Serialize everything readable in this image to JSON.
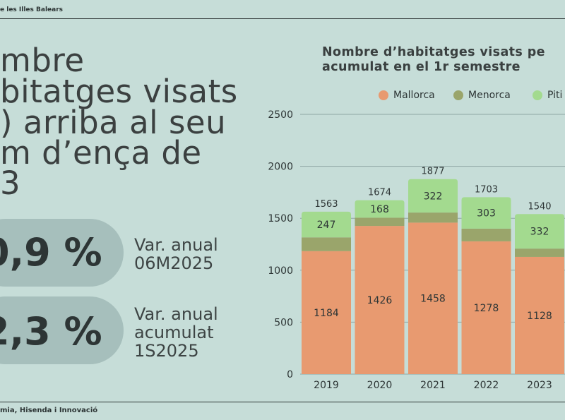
{
  "header": {
    "source_text": "e les Illes Balears"
  },
  "footer": {
    "text": "mia, Hisenda i Innovació"
  },
  "headline": {
    "lines": [
      "mbre",
      "bitatges visats",
      ") arriba al seu",
      "m d’ença de",
      "3"
    ]
  },
  "stats": [
    {
      "value": "0,9 %",
      "label_lines": [
        "Var. anual",
        "06M2025"
      ]
    },
    {
      "value": "2,3 %",
      "label_lines": [
        "Var. anual",
        "acumulat",
        "1S2025"
      ]
    }
  ],
  "colors": {
    "background": "#c6ddd8",
    "mallorca": "#e89a70",
    "menorca": "#9aa56b",
    "pitiuses": "#a3da8f",
    "pill": "#a6bfbc"
  },
  "chart_data": {
    "type": "bar",
    "stacked": true,
    "title_lines": [
      "Nombre d’habitatges visats pe",
      "acumulat en el 1r semestre"
    ],
    "categories": [
      "2019",
      "2020",
      "2021",
      "2022",
      "2023"
    ],
    "series": [
      {
        "name": "Mallorca",
        "values": [
          1184,
          1426,
          1458,
          1278,
          1128
        ]
      },
      {
        "name": "Menorca",
        "values": [
          132,
          80,
          97,
          122,
          80
        ]
      },
      {
        "name": "Piti",
        "values": [
          247,
          168,
          322,
          303,
          332
        ]
      }
    ],
    "totals": [
      1563,
      1674,
      1877,
      1703,
      1540
    ],
    "segment_labels": {
      "Mallorca": [
        "1184",
        "1426",
        "1458",
        "1278",
        "1128"
      ],
      "Piti": [
        "247",
        "168",
        "322",
        "303",
        "332"
      ]
    },
    "y_ticks": [
      0,
      500,
      1000,
      1500,
      2000,
      2500
    ],
    "ylim": [
      0,
      2500
    ],
    "legend": [
      "Mallorca",
      "Menorca",
      "Piti"
    ],
    "grid": true,
    "legend_position": "top"
  }
}
